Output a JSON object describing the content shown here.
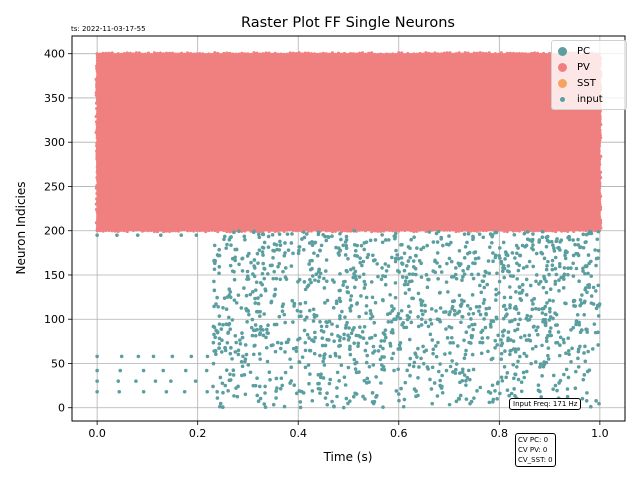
{
  "timestamp": "ts: 2022-11-03-17-55",
  "annotations": {
    "input_freq": "Input Freq: 171 Hz",
    "cv_pc": "CV PC: 0",
    "cv_pv": "CV PV: 0",
    "cv_sst": "CV_SST: 0"
  },
  "chart_data": {
    "type": "scatter",
    "title": "Raster Plot FF Single Neurons",
    "xlabel": "Time (s)",
    "ylabel": "Neuron Indicies",
    "xlim": [
      -0.05,
      1.05
    ],
    "ylim": [
      -15,
      420
    ],
    "xticks": [
      0.0,
      0.2,
      0.4,
      0.6,
      0.8,
      1.0
    ],
    "xtick_labels": [
      "0.0",
      "0.2",
      "0.4",
      "0.6",
      "0.8",
      "1.0"
    ],
    "yticks": [
      0,
      50,
      100,
      150,
      200,
      250,
      300,
      350,
      400
    ],
    "ytick_labels": [
      "0",
      "50",
      "100",
      "150",
      "200",
      "250",
      "300",
      "350",
      "400"
    ],
    "grid": true,
    "legend_position": "top-right",
    "series": [
      {
        "name": "PC",
        "color": "#5b9ea0",
        "spike_region": {
          "t_start": 0.23,
          "t_end": 1.0,
          "neuron_min": 0,
          "neuron_max": 199
        },
        "early_neurons": [
          18,
          30,
          42,
          58,
          195
        ]
      },
      {
        "name": "PV",
        "color": "#f08080",
        "spike_region": {
          "t_start": 0.0,
          "t_end": 1.0,
          "neuron_min": 200,
          "neuron_max": 400
        }
      },
      {
        "name": "SST",
        "color": "#f4a460"
      },
      {
        "name": "input",
        "color": "#5b9ea0",
        "marker_size": "small"
      }
    ]
  }
}
